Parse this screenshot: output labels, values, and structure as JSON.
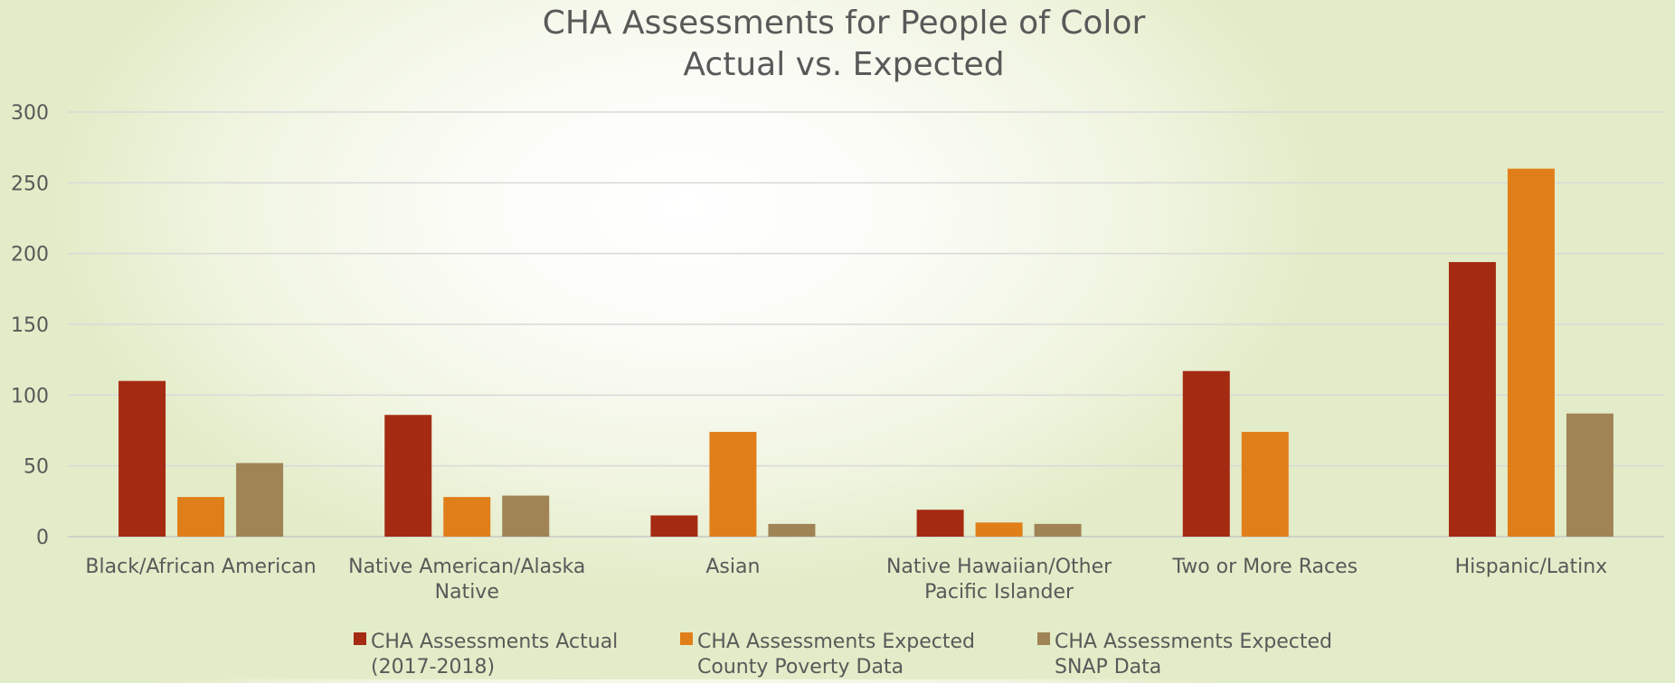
{
  "chart_data": {
    "type": "bar",
    "title": "CHA Assessments for People of Color",
    "subtitle": "Actual vs. Expected",
    "xlabel": "",
    "ylabel": "",
    "ylim": [
      0,
      300
    ],
    "yticks": [
      0,
      50,
      100,
      150,
      200,
      250,
      300
    ],
    "grid": true,
    "legend_position": "bottom",
    "categories": [
      [
        "Black/African American"
      ],
      [
        "Native American/Alaska",
        "Native"
      ],
      [
        "Asian"
      ],
      [
        "Native Hawaiian/Other",
        "Pacific Islander"
      ],
      [
        "Two or More Races"
      ],
      [
        "Hispanic/Latinx"
      ]
    ],
    "series": [
      {
        "name": [
          "CHA Assessments Actual",
          "(2017-2018)"
        ],
        "color": "#a52a12",
        "values": [
          110,
          86,
          15,
          19,
          117,
          194
        ]
      },
      {
        "name": [
          "CHA Assessments Expected",
          "County Poverty Data"
        ],
        "color": "#e07f1a",
        "values": [
          28,
          28,
          74,
          10,
          74,
          260
        ]
      },
      {
        "name": [
          "CHA Assessments Expected",
          "SNAP Data"
        ],
        "color": "#a08455",
        "values": [
          52,
          29,
          9,
          9,
          0,
          87
        ]
      }
    ]
  }
}
